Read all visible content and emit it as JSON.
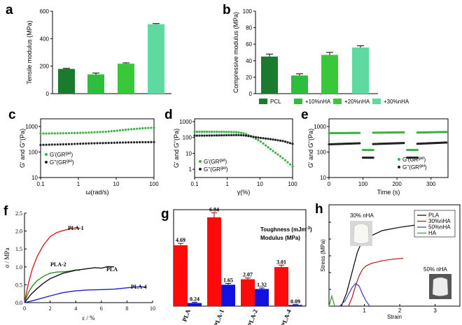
{
  "chart_data": [
    {
      "panel": "a",
      "type": "bar",
      "ylabel": "Tensile modulus (MPa)",
      "ylim": [
        0,
        600
      ],
      "yticks": [
        0,
        200,
        400,
        600
      ],
      "categories": [
        "PCL",
        "+10%nHA",
        "+20%nHA",
        "+30%nHA"
      ],
      "values": [
        180,
        140,
        218,
        505
      ],
      "errors": [
        4,
        10,
        6,
        5
      ],
      "colors": [
        "#1a7a2e",
        "#2ebd3c",
        "#38c83a",
        "#5ed9a0"
      ]
    },
    {
      "panel": "b",
      "type": "bar",
      "ylabel": "Compressive modulus (MPa)",
      "ylim": [
        0,
        100
      ],
      "yticks": [
        0,
        20,
        40,
        60,
        80,
        100
      ],
      "categories": [
        "PCL",
        "+10%nHA",
        "+20%nHA",
        "+30%nHA"
      ],
      "values": [
        45,
        22,
        47,
        56
      ],
      "errors": [
        3,
        2,
        3,
        2
      ],
      "colors": [
        "#1a7a2e",
        "#2ebd3c",
        "#38c83a",
        "#5ed9a0"
      ],
      "legend": [
        "PCL",
        "+10%nHA",
        "+20%nHA",
        "+30%nHA"
      ]
    },
    {
      "panel": "c",
      "type": "scatter",
      "xlabel": "ω(rad/s)",
      "ylabel": "G' and G''(Pa)",
      "xscale": "log",
      "yscale": "log",
      "xlim": [
        0.1,
        100
      ],
      "ylim": [
        10,
        2000
      ],
      "xticks": [
        "0.1",
        "1",
        "10",
        "100"
      ],
      "yticks": [
        "10",
        "100",
        "1000"
      ],
      "series": [
        {
          "name": "G'(GR",
          "sup": "gel",
          "color": "#3cb043",
          "x": [
            0.1,
            0.2,
            0.5,
            1,
            2,
            5,
            10,
            20,
            50,
            100
          ],
          "y": [
            530,
            535,
            545,
            560,
            580,
            620,
            680,
            760,
            850,
            900
          ]
        },
        {
          "name": "G''(GR",
          "sup": "gel",
          "color": "#222222",
          "x": [
            0.1,
            0.2,
            0.5,
            1,
            2,
            5,
            10,
            20,
            50,
            100
          ],
          "y": [
            190,
            195,
            202,
            210,
            218,
            225,
            232,
            238,
            242,
            245
          ]
        }
      ]
    },
    {
      "panel": "d",
      "type": "scatter",
      "xlabel": "γ(%)",
      "ylabel": "G' and G''(Pa)",
      "xscale": "log",
      "yscale": "log",
      "xlim": [
        0.1,
        100
      ],
      "ylim": [
        0.3,
        1500
      ],
      "xticks": [
        "0.1",
        "1",
        "10",
        "100"
      ],
      "yticks": [
        "1",
        "10",
        "100",
        "1000"
      ],
      "series": [
        {
          "name": "G'(GR",
          "sup": "gel",
          "color": "#3cb043",
          "x": [
            0.1,
            0.2,
            0.5,
            1,
            2,
            3,
            5,
            10,
            20,
            50,
            100
          ],
          "y": [
            230,
            230,
            228,
            225,
            215,
            190,
            130,
            60,
            20,
            5,
            1.5
          ]
        },
        {
          "name": "G''(GR",
          "sup": "gel",
          "color": "#222222",
          "x": [
            0.1,
            0.2,
            0.5,
            1,
            2,
            3,
            5,
            10,
            20,
            50,
            100
          ],
          "y": [
            130,
            132,
            135,
            138,
            142,
            138,
            120,
            95,
            80,
            60,
            40
          ]
        }
      ]
    },
    {
      "panel": "e",
      "type": "scatter",
      "xlabel": "Time (s)",
      "ylabel": "G' and G''(Pa)",
      "yscale": "log",
      "xlim": [
        0,
        350
      ],
      "ylim": [
        10,
        2000
      ],
      "xticks": [
        "0",
        "100",
        "200",
        "300"
      ],
      "yticks": [
        "10",
        "100",
        "1000"
      ],
      "series": [
        {
          "name": "G'(GR",
          "sup": "gel",
          "color": "#3cb043",
          "segments": [
            [
              0,
              90,
              550,
              560
            ],
            [
              100,
              130,
              120,
              120
            ],
            [
              130,
              220,
              570,
              590
            ],
            [
              230,
              260,
              120,
              120
            ],
            [
              260,
              345,
              580,
              610
            ]
          ]
        },
        {
          "name": "G''(GR",
          "sup": "gel",
          "color": "#222222",
          "segments": [
            [
              0,
              90,
              200,
              220
            ],
            [
              100,
              130,
              60,
              60
            ],
            [
              130,
              220,
              205,
              225
            ],
            [
              230,
              260,
              60,
              60
            ],
            [
              260,
              345,
              210,
              235
            ]
          ]
        }
      ]
    },
    {
      "panel": "f",
      "type": "line",
      "xlabel": "ε / %",
      "ylabel": "σ / MPa",
      "xlim": [
        0,
        10
      ],
      "ylim": [
        0,
        2.5
      ],
      "xticks": [
        "0",
        "2",
        "4",
        "6",
        "8",
        "10"
      ],
      "yticks": [
        "0.0",
        "0.5",
        "1.0",
        "1.5",
        "2.0",
        "2.5"
      ],
      "series": [
        {
          "name": "PLA-1",
          "color": "#d42020",
          "x": [
            0,
            0.3,
            0.6,
            1,
            1.5,
            2,
            2.5,
            3,
            3.5,
            4,
            4.3
          ],
          "y": [
            0,
            0.55,
            0.95,
            1.3,
            1.6,
            1.82,
            1.95,
            2.03,
            2.08,
            2.1,
            2.08
          ]
        },
        {
          "name": "PLA-2",
          "color": "#2a8a2a",
          "x": [
            0,
            0.3,
            0.6,
            1,
            1.5,
            2,
            2.5,
            3,
            3.5,
            4,
            4.3
          ],
          "y": [
            0,
            0.3,
            0.48,
            0.62,
            0.72,
            0.8,
            0.85,
            0.88,
            0.9,
            0.92,
            0.9
          ]
        },
        {
          "name": "PLA",
          "color": "#111111",
          "x": [
            0,
            0.5,
            1,
            1.5,
            2,
            3,
            4,
            5,
            5.5,
            6,
            6.5,
            7
          ],
          "y": [
            0,
            0.25,
            0.42,
            0.55,
            0.65,
            0.8,
            0.9,
            0.97,
            1.0,
            0.97,
            0.99,
            1.0
          ]
        },
        {
          "name": "PLA-4",
          "color": "#2020c8",
          "x": [
            0,
            0.5,
            1,
            2,
            3,
            4,
            5,
            6,
            7,
            8,
            9,
            9.5
          ],
          "y": [
            0,
            0.06,
            0.11,
            0.19,
            0.26,
            0.31,
            0.35,
            0.38,
            0.4,
            0.42,
            0.43,
            0.43
          ]
        }
      ]
    },
    {
      "panel": "g",
      "type": "bar",
      "categories": [
        "PLA",
        "PLA-1",
        "PLA-2",
        "PLA-4"
      ],
      "category_colors": [
        "#000000",
        "#d42020",
        "#2a8a2a",
        "#2020c8"
      ],
      "ymax": 7,
      "series": [
        {
          "name": "Toughness (mJm",
          "sup": "-3",
          "name_end": ")",
          "color": "#ff0a0a",
          "label_color": "#c01010",
          "values": [
            4.69,
            6.84,
            2.07,
            3.01
          ],
          "errors": [
            0.15,
            0.35,
            0.1,
            0.15
          ]
        },
        {
          "name": "Modulus (MPa)",
          "color": "#1010e0",
          "label_color": "#1010c0",
          "values": [
            0.24,
            1.65,
            1.32,
            0.09
          ],
          "errors": [
            0.05,
            0.1,
            0.08,
            0.03
          ]
        }
      ]
    },
    {
      "panel": "h",
      "type": "line",
      "xlabel": "Strain",
      "ylabel": "Stress (MPa)",
      "xlim": [
        0,
        3.7
      ],
      "ylim": [
        0,
        50
      ],
      "xticks": [
        "1",
        "2",
        "3"
      ],
      "annotations": [
        "30% nHA",
        "50% nHA"
      ],
      "series": [
        {
          "name": "PLA",
          "color": "#000000",
          "x": [
            0.35,
            0.5,
            0.65,
            0.8,
            0.9,
            1.0,
            1.2,
            1.5,
            2.0,
            2.5,
            3.0
          ],
          "y": [
            0,
            8,
            20,
            32,
            37,
            39,
            42,
            45,
            47,
            48.5,
            49.5
          ]
        },
        {
          "name": "30%nHA",
          "color": "#b01818",
          "x": [
            0.55,
            0.65,
            0.75,
            0.85,
            0.95,
            1.05,
            1.2,
            1.5,
            1.8,
            2.1
          ],
          "y": [
            0,
            5,
            12,
            18,
            22,
            24,
            25.5,
            27,
            28,
            28.5
          ]
        },
        {
          "name": "50%nHA",
          "color": "#3a3ad0",
          "x": [
            0.3,
            0.45,
            0.55,
            0.65,
            0.75,
            0.85,
            0.95,
            1.05,
            1.15
          ],
          "y": [
            0,
            3,
            7,
            11,
            13.5,
            12,
            7,
            3,
            0
          ]
        },
        {
          "name": "HA",
          "color": "#2a9a2a",
          "x": [
            0.0,
            0.04,
            0.08,
            0.12,
            0.16
          ],
          "y": [
            0,
            3,
            6,
            3,
            0
          ]
        }
      ]
    }
  ]
}
